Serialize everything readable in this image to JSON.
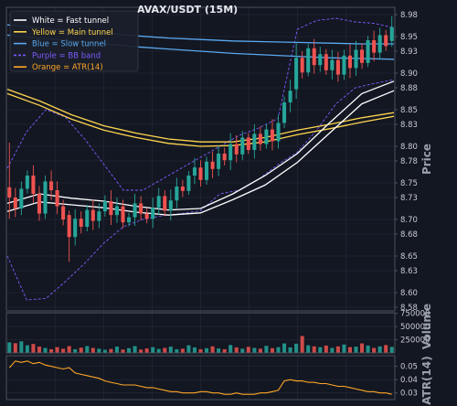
{
  "chart_data": {
    "type": "candlestick",
    "title": "AVAX/USDT (15M)",
    "colors": {
      "background": "#131722",
      "grid": "#262b38",
      "frame": "#4a505c",
      "up": "#26a69a",
      "down": "#ef5350",
      "fast": "#ffffff",
      "main": "#ffd54f",
      "slow": "#5aa9f0",
      "bb": "#7c5cff",
      "atr": "#ffa726"
    },
    "legend": [
      {
        "label": "White = Fast tunnel",
        "color": "#ffffff",
        "style": "solid"
      },
      {
        "label": "Yellow = Main tunnel",
        "color": "#ffd54f",
        "style": "solid"
      },
      {
        "label": "Blue = Slow tunnel",
        "color": "#5aa9f0",
        "style": "solid"
      },
      {
        "label": "Purple = BB band",
        "color": "#7c5cff",
        "style": "dashed"
      },
      {
        "label": "Orange = ATR(14)",
        "color": "#ffa726",
        "style": "solid"
      }
    ],
    "legend_position": "top-left",
    "price_panel": {
      "ylabel": "Price",
      "ylim": [
        8.575,
        8.99
      ],
      "yticks": [
        8.98,
        8.95,
        8.93,
        8.9,
        8.88,
        8.85,
        8.83,
        8.8,
        8.78,
        8.75,
        8.73,
        8.7,
        8.68,
        8.65,
        8.63,
        8.6,
        8.58
      ],
      "ytick_labels": [
        "8.98",
        "8.95",
        "8.93",
        "8.90",
        "8.88",
        "8.85",
        "8.83",
        "8.80",
        "8.78",
        "8.75",
        "8.73",
        "8.70",
        "8.68",
        "8.65",
        "8.63",
        "8.60",
        "8.58"
      ],
      "closes": [
        8.73,
        8.715,
        8.742,
        8.76,
        8.735,
        8.708,
        8.752,
        8.74,
        8.718,
        8.7,
        8.676,
        8.701,
        8.69,
        8.713,
        8.698,
        8.711,
        8.725,
        8.706,
        8.718,
        8.696,
        8.703,
        8.722,
        8.708,
        8.701,
        8.716,
        8.732,
        8.712,
        8.726,
        8.745,
        8.739,
        8.76,
        8.771,
        8.754,
        8.779,
        8.769,
        8.79,
        8.781,
        8.803,
        8.789,
        8.812,
        8.795,
        8.817,
        8.803,
        8.823,
        8.807,
        8.832,
        8.86,
        8.876,
        8.921,
        8.901,
        8.934,
        8.911,
        8.926,
        8.904,
        8.918,
        8.898,
        8.924,
        8.907,
        8.932,
        8.914,
        8.945,
        8.928,
        8.952,
        8.937,
        8.963
      ],
      "anchor_bars": [
        {
          "i": 0,
          "o": 8.744,
          "h": 8.805,
          "l": 8.701,
          "c": 8.73
        },
        {
          "i": 10,
          "o": 8.706,
          "h": 8.712,
          "l": 8.642,
          "c": 8.676
        },
        {
          "i": 48,
          "o": 8.878,
          "h": 8.942,
          "l": 8.865,
          "c": 8.921
        },
        {
          "i": 64,
          "o": 8.944,
          "h": 8.978,
          "l": 8.936,
          "c": 8.963
        }
      ],
      "fast_tunnel": {
        "a": [
          8.722,
          8.735,
          8.729,
          8.725,
          8.718,
          8.713,
          8.715,
          8.735,
          8.76,
          8.79,
          8.832,
          8.872,
          8.889
        ],
        "b": [
          8.711,
          8.724,
          8.72,
          8.716,
          8.71,
          8.706,
          8.709,
          8.727,
          8.747,
          8.778,
          8.818,
          8.858,
          8.876
        ]
      },
      "main_tunnel": {
        "a": [
          8.878,
          8.862,
          8.843,
          8.828,
          8.818,
          8.81,
          8.806,
          8.806,
          8.812,
          8.822,
          8.83,
          8.839,
          8.846
        ],
        "b": [
          8.872,
          8.856,
          8.837,
          8.822,
          8.812,
          8.804,
          8.8,
          8.801,
          8.806,
          8.816,
          8.824,
          8.833,
          8.841
        ]
      },
      "slow_tunnel": {
        "a": [
          8.966,
          8.962,
          8.958,
          8.955,
          8.951,
          8.948,
          8.946,
          8.944,
          8.943,
          8.942,
          8.941,
          8.94,
          8.94
        ],
        "b": [
          8.952,
          8.948,
          8.944,
          8.94,
          8.936,
          8.933,
          8.93,
          8.927,
          8.925,
          8.923,
          8.921,
          8.92,
          8.919
        ]
      },
      "bb_upper": [
        8.77,
        8.82,
        8.85,
        8.84,
        8.81,
        8.775,
        8.74,
        8.74,
        8.755,
        8.77,
        8.785,
        8.8,
        8.815,
        8.825,
        8.838,
        8.96,
        8.972,
        8.975,
        8.97,
        8.968,
        8.962
      ],
      "bb_lower": [
        8.65,
        8.59,
        8.592,
        8.615,
        8.64,
        8.668,
        8.69,
        8.7,
        8.705,
        8.708,
        8.712,
        8.735,
        8.74,
        8.755,
        8.775,
        8.792,
        8.822,
        8.858,
        8.88,
        8.886,
        8.891
      ]
    },
    "volume_panel": {
      "ylabel": "Volume",
      "yticks": [
        750000,
        500000,
        250000
      ],
      "ytick_labels": [
        "750000",
        "500000",
        "250000"
      ],
      "ymax": 760000,
      "values": [
        200000,
        185000,
        220000,
        145000,
        170000,
        120000,
        95000,
        70000,
        110000,
        80000,
        130000,
        70000,
        100000,
        130000,
        95000,
        80000,
        60000,
        75000,
        120000,
        65000,
        90000,
        130000,
        65000,
        85000,
        110000,
        75000,
        95000,
        120000,
        70000,
        80000,
        145000,
        105000,
        70000,
        90000,
        125000,
        85000,
        70000,
        150000,
        105000,
        80000,
        115000,
        95000,
        80000,
        135000,
        90000,
        110000,
        180000,
        105000,
        175000,
        320000,
        145000,
        125000,
        110000,
        140000,
        95000,
        125000,
        160000,
        110000,
        120000,
        180000,
        140000,
        95000,
        125000,
        150000,
        115000
      ]
    },
    "atr_panel": {
      "ylabel": "ATR(14)",
      "ylim": [
        0.025,
        0.058
      ],
      "yticks": [
        0.05,
        0.04,
        0.03
      ],
      "ytick_labels": [
        "0.05",
        "0.04",
        "0.03"
      ],
      "values": [
        0.049,
        0.054,
        0.053,
        0.054,
        0.052,
        0.053,
        0.051,
        0.05,
        0.049,
        0.048,
        0.049,
        0.045,
        0.044,
        0.043,
        0.042,
        0.041,
        0.039,
        0.038,
        0.037,
        0.036,
        0.036,
        0.036,
        0.035,
        0.034,
        0.034,
        0.033,
        0.032,
        0.031,
        0.031,
        0.03,
        0.03,
        0.03,
        0.031,
        0.031,
        0.03,
        0.03,
        0.029,
        0.029,
        0.03,
        0.029,
        0.029,
        0.029,
        0.03,
        0.03,
        0.031,
        0.032,
        0.039,
        0.04,
        0.039,
        0.039,
        0.038,
        0.038,
        0.037,
        0.037,
        0.036,
        0.035,
        0.035,
        0.034,
        0.033,
        0.032,
        0.031,
        0.031,
        0.03,
        0.03,
        0.029
      ]
    }
  }
}
